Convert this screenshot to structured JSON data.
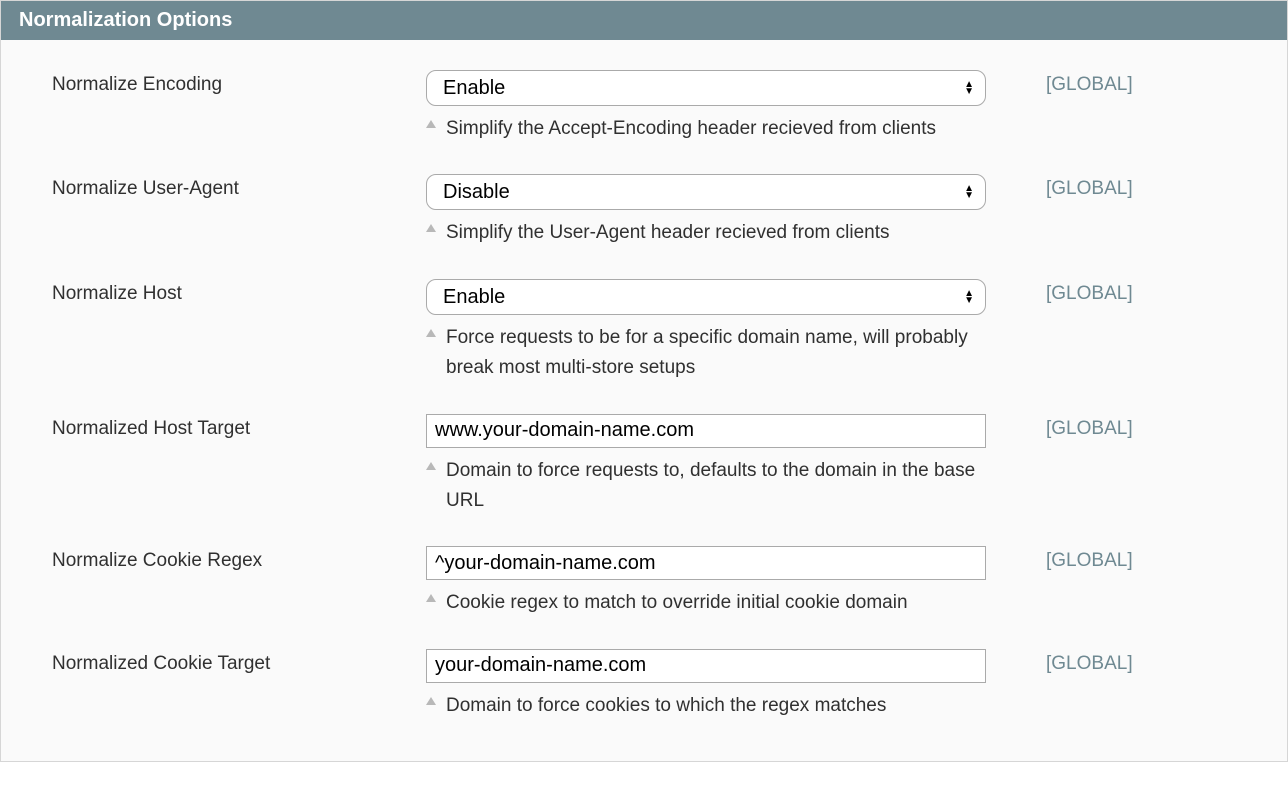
{
  "panel": {
    "title": "Normalization Options"
  },
  "scope": {
    "global": "[GLOBAL]"
  },
  "options": {
    "enable": "Enable",
    "disable": "Disable"
  },
  "fields": {
    "normalize_encoding": {
      "label": "Normalize Encoding",
      "value": "Enable",
      "help": "Simplify the Accept-Encoding header recieved from clients"
    },
    "normalize_user_agent": {
      "label": "Normalize User-Agent",
      "value": "Disable",
      "help": "Simplify the User-Agent header recieved from clients"
    },
    "normalize_host": {
      "label": "Normalize Host",
      "value": "Enable",
      "help": "Force requests to be for a specific domain name, will probably break most multi-store setups"
    },
    "normalized_host_target": {
      "label": "Normalized Host Target",
      "value": "www.your-domain-name.com",
      "help": "Domain to force requests to, defaults to the domain in the base URL"
    },
    "normalize_cookie_regex": {
      "label": "Normalize Cookie Regex",
      "value": "^your-domain-name.com",
      "help": "Cookie regex to match to override initial cookie domain"
    },
    "normalized_cookie_target": {
      "label": "Normalized Cookie Target",
      "value": "your-domain-name.com",
      "help": "Domain to force cookies to which the regex matches"
    }
  },
  "colors": {
    "header_bg": "#6f8992",
    "header_text": "#ffffff",
    "panel_bg": "#fafafa",
    "border": "#d6d6d6",
    "input_border": "#aaaaaa",
    "text": "#303030",
    "scope_text": "#6f8992",
    "help_triangle": "#b8b8b8"
  },
  "typography": {
    "header_fontsize": 20,
    "label_fontsize": 19,
    "input_fontsize": 20,
    "help_fontsize": 19,
    "scope_fontsize": 19
  }
}
